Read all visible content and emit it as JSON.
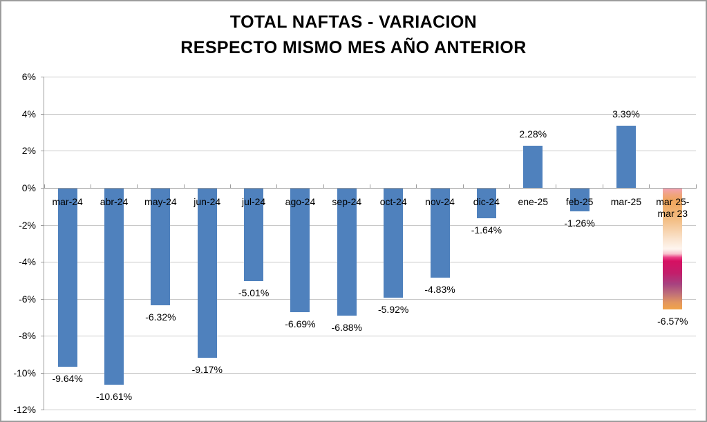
{
  "title": {
    "line1": "TOTAL NAFTAS - VARIACION",
    "line2": "RESPECTO MISMO MES AÑO ANTERIOR"
  },
  "colors": {
    "bar_blue": "#4F81BD",
    "gridline": "#C8C8C8",
    "axis": "#9B9B9B",
    "border": "#9C9C9C",
    "background": "#FFFFFF",
    "text": "#000000"
  },
  "chart_data": {
    "type": "bar",
    "title": "TOTAL NAFTAS - VARIACION RESPECTO MISMO MES AÑO ANTERIOR",
    "categories": [
      "mar-24",
      "abr-24",
      "may-24",
      "jun-24",
      "jul-24",
      "ago-24",
      "sep-24",
      "oct-24",
      "nov-24",
      "dic-24",
      "ene-25",
      "feb-25",
      "mar-25",
      "mar 25-mar 23"
    ],
    "category_label_lines": [
      [
        "mar-24"
      ],
      [
        "abr-24"
      ],
      [
        "may-24"
      ],
      [
        "jun-24"
      ],
      [
        "jul-24"
      ],
      [
        "ago-24"
      ],
      [
        "sep-24"
      ],
      [
        "oct-24"
      ],
      [
        "nov-24"
      ],
      [
        "dic-24"
      ],
      [
        "ene-25"
      ],
      [
        "feb-25"
      ],
      [
        "mar-25"
      ],
      [
        "mar 25-",
        "mar 23"
      ]
    ],
    "values": [
      -9.64,
      -10.61,
      -6.32,
      -9.17,
      -5.01,
      -6.69,
      -6.88,
      -5.92,
      -4.83,
      -1.64,
      2.28,
      -1.26,
      3.39,
      -6.57
    ],
    "value_labels": [
      "-9.64%",
      "-10.61%",
      "-6.32%",
      "-9.17%",
      "-5.01%",
      "-6.69%",
      "-6.88%",
      "-5.92%",
      "-4.83%",
      "-1.64%",
      "2.28%",
      "-1.26%",
      "3.39%",
      "-6.57%"
    ],
    "xlabel": "",
    "ylabel": "",
    "ylim": [
      -12,
      6
    ],
    "yticks": [
      6,
      4,
      2,
      0,
      -2,
      -4,
      -6,
      -8,
      -10,
      -12
    ],
    "ytick_labels": [
      "6%",
      "4%",
      "2%",
      "0%",
      "-2%",
      "-4%",
      "-6%",
      "-8%",
      "-10%",
      "-12%"
    ],
    "grid": true,
    "legend": false,
    "bar_colors": {
      "default": "#4F81BD",
      "last_bar_gradient": [
        {
          "pos": 0.0,
          "color": "#F3A1B2"
        },
        {
          "pos": 0.05,
          "color": "#F0A47E"
        },
        {
          "pos": 0.1,
          "color": "#EFA55C"
        },
        {
          "pos": 0.26,
          "color": "#F3BE85"
        },
        {
          "pos": 0.42,
          "color": "#FAE4CF"
        },
        {
          "pos": 0.5,
          "color": "#FEF5EF"
        },
        {
          "pos": 0.54,
          "color": "#F8C3CE"
        },
        {
          "pos": 0.57,
          "color": "#EA3D85"
        },
        {
          "pos": 0.6,
          "color": "#D61062"
        },
        {
          "pos": 0.7,
          "color": "#C31E6B"
        },
        {
          "pos": 0.79,
          "color": "#A74280"
        },
        {
          "pos": 0.87,
          "color": "#BF6F79"
        },
        {
          "pos": 0.94,
          "color": "#E2955F"
        },
        {
          "pos": 1.0,
          "color": "#F1A449"
        }
      ]
    }
  }
}
